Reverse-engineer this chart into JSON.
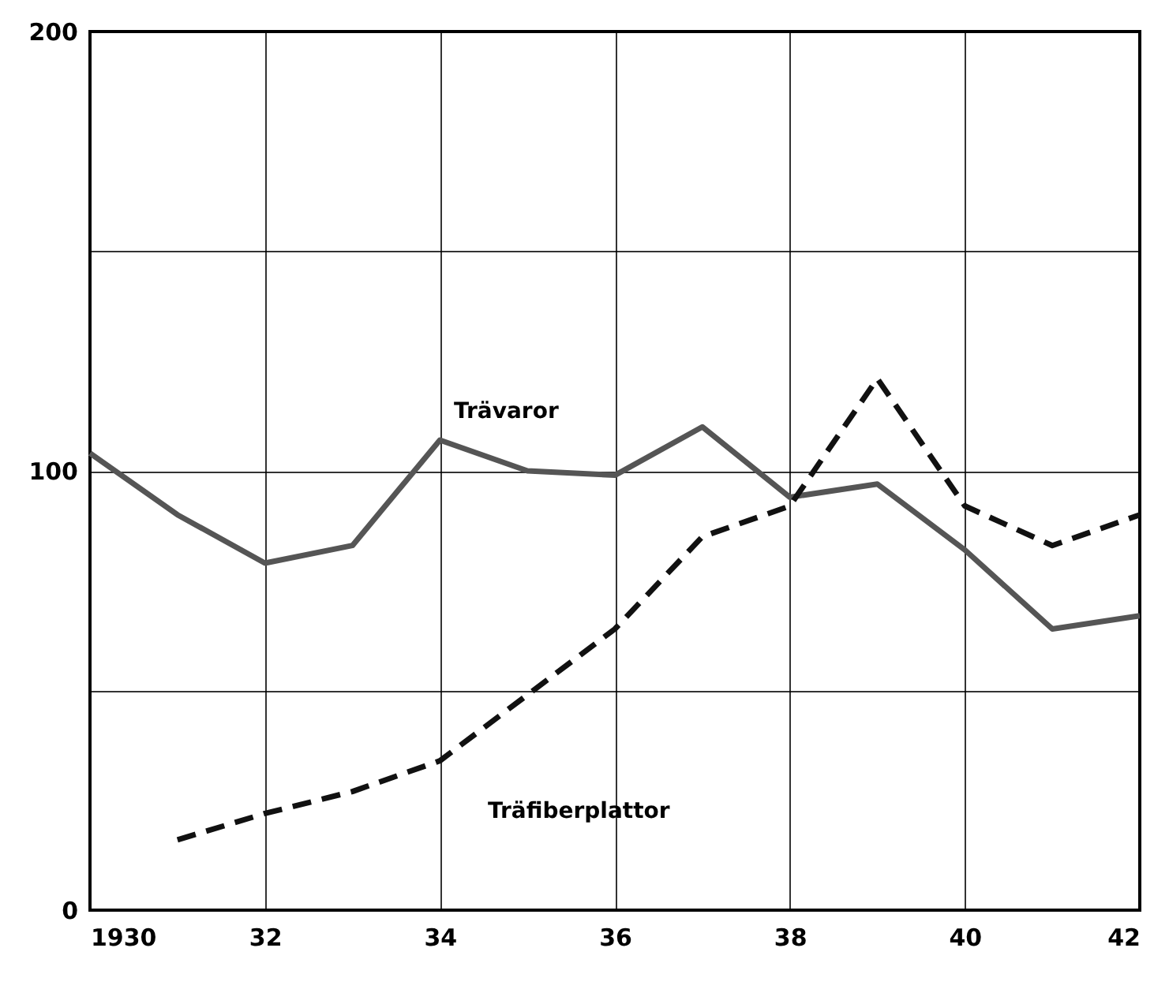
{
  "chart_data": {
    "type": "line",
    "x": [
      1930,
      1931,
      1932,
      1933,
      1934,
      1935,
      1936,
      1937,
      1938,
      1939,
      1940,
      1941,
      1942
    ],
    "series": [
      {
        "name": "Trävaror",
        "color": "#555555",
        "line_style": "solid",
        "values": [
          104,
          90,
          79,
          83,
          107,
          100,
          99,
          110,
          94,
          97,
          82,
          64,
          67
        ]
      },
      {
        "name": "Träfiberplattor",
        "color": "#111111",
        "line_style": "dashed",
        "values": [
          null,
          16,
          22,
          27,
          34,
          49,
          64,
          85,
          92,
          121,
          92,
          83,
          90
        ]
      }
    ],
    "xlim": [
      1930,
      1942
    ],
    "xticks": [
      {
        "value": 1930,
        "label": "1930"
      },
      {
        "value": 1932,
        "label": "32"
      },
      {
        "value": 1934,
        "label": "34"
      },
      {
        "value": 1936,
        "label": "36"
      },
      {
        "value": 1938,
        "label": "38"
      },
      {
        "value": 1940,
        "label": "40"
      },
      {
        "value": 1942,
        "label": "42"
      }
    ],
    "ylim": [
      0,
      200
    ],
    "yticks": [
      0,
      {
        "value": 50,
        "label": null
      },
      100,
      {
        "value": 150,
        "label": null
      },
      200
    ],
    "grid": true,
    "marker": "none"
  }
}
